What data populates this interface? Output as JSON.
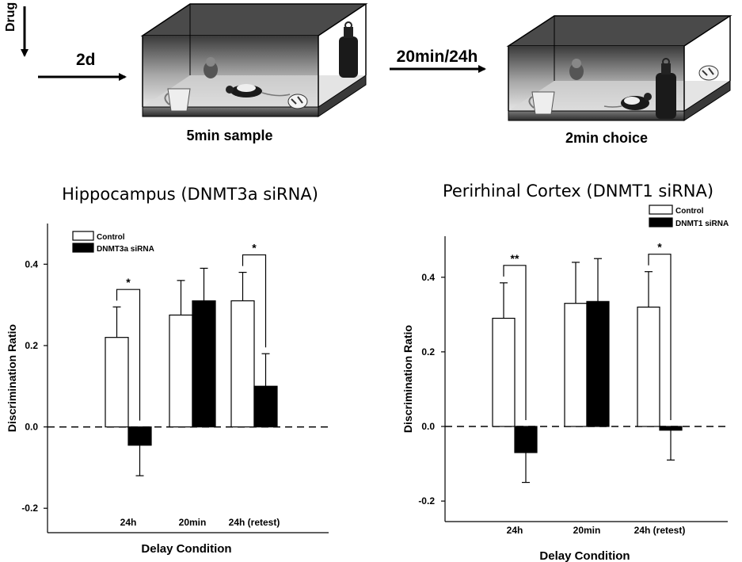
{
  "schematic": {
    "drug_label": "Drug",
    "step1_label": "2d",
    "step2_label": "20min/24h",
    "sample_caption": "5min sample",
    "choice_caption": "2min choice"
  },
  "chart_data": [
    {
      "type": "bar",
      "title": "Hippocampus (DNMT3a siRNA)",
      "xlabel": "Delay Condition",
      "ylabel": "Discrimination Ratio",
      "categories": [
        "24h",
        "20min",
        "24h (retest)"
      ],
      "ylim": [
        -0.26,
        0.5
      ],
      "yticks": [
        -0.2,
        0.0,
        0.2,
        0.4
      ],
      "ytick_labels": [
        "-0.2",
        "0.0",
        "0.2",
        "0.4"
      ],
      "grid": false,
      "legend_position": "top-left",
      "series": [
        {
          "name": "Control",
          "color": "#ffffff",
          "values": [
            0.22,
            0.275,
            0.31
          ],
          "errors": [
            0.075,
            0.085,
            0.07
          ]
        },
        {
          "name": "DNMT3a siRNA",
          "color": "#000000",
          "values": [
            -0.045,
            0.31,
            0.1
          ],
          "errors": [
            0.075,
            0.08,
            0.08
          ]
        }
      ],
      "significance": [
        {
          "category": "24h",
          "label": "*"
        },
        {
          "category": "24h (retest)",
          "label": "*"
        }
      ]
    },
    {
      "type": "bar",
      "title": "Perirhinal Cortex (DNMT1 siRNA)",
      "xlabel": "Delay Condition",
      "ylabel": "Discrimination Ratio",
      "categories": [
        "24h",
        "20min",
        "24h (retest)"
      ],
      "ylim": [
        -0.255,
        0.51
      ],
      "yticks": [
        -0.2,
        0.0,
        0.2,
        0.4
      ],
      "ytick_labels": [
        "-0.2",
        "0.0",
        "0.2",
        "0.4"
      ],
      "grid": false,
      "legend_position": "top-right",
      "series": [
        {
          "name": "Control",
          "color": "#ffffff",
          "values": [
            0.29,
            0.33,
            0.32
          ],
          "errors": [
            0.095,
            0.11,
            0.095
          ]
        },
        {
          "name": "DNMT1 siRNA",
          "color": "#000000",
          "values": [
            -0.07,
            0.335,
            -0.01
          ],
          "errors": [
            0.08,
            0.115,
            0.08
          ]
        }
      ],
      "significance": [
        {
          "category": "24h",
          "label": "**"
        },
        {
          "category": "24h (retest)",
          "label": "*"
        }
      ]
    }
  ]
}
